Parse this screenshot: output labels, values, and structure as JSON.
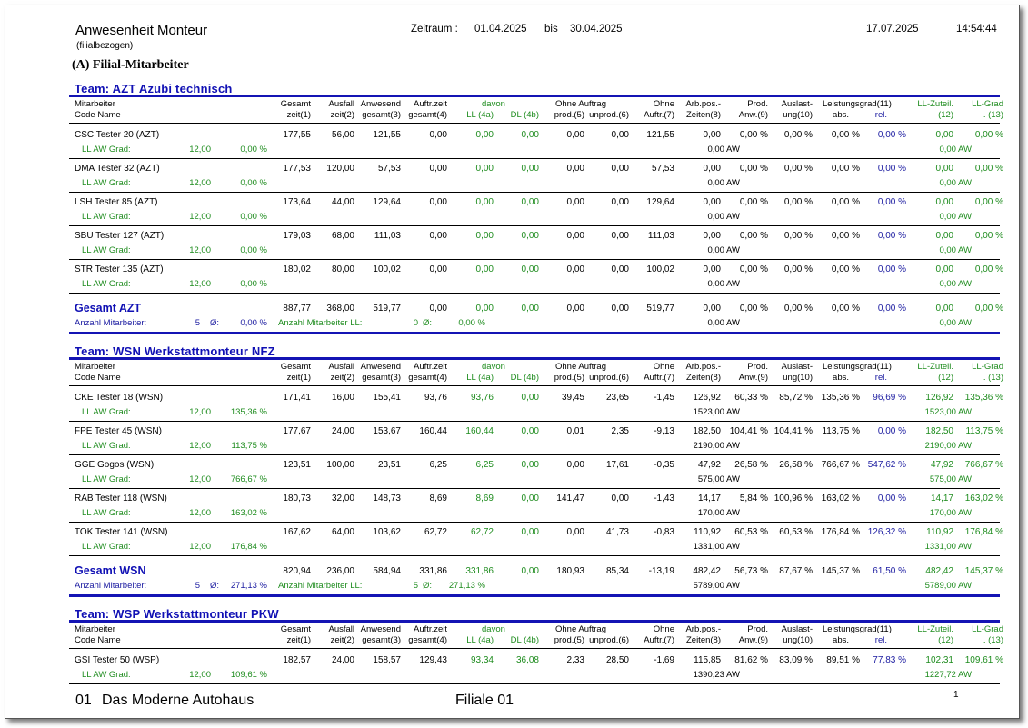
{
  "report": {
    "title": "Anwesenheit Monteur",
    "subtitle": "(filialbezogen)",
    "period_label": "Zeitraum :",
    "period_from": "01.04.2025",
    "period_sep": "bis",
    "period_to": "30.04.2025",
    "date": "17.07.2025",
    "time": "14:54:44",
    "section": "(A) Filial-Mitarbeiter"
  },
  "header_labels": {
    "mitarbeiter": "Mitarbeiter",
    "code_name": "Code  Name",
    "c1a": "Gesamt",
    "c1b": "zeit(1)",
    "c2a": "Ausfall",
    "c2b": "zeit(2)",
    "c3a": "Anwesend",
    "c3b": "gesamt(3)",
    "c4a": "Auftr.zeit",
    "c4b": "gesamt(4)",
    "davon": "davon",
    "c4ab": "LL (4a)",
    "c4bb": "DL (4b)",
    "ohne_auftrag": "Ohne Auftrag",
    "c5b": "prod.(5)",
    "c6b": "unprod.(6)",
    "c7a": "Ohne",
    "c7b": "Auftr.(7)",
    "c8a": "Arb.pos.-",
    "c8b": "Zeiten(8)",
    "c9a": "Prod.",
    "c9b": "Anw.(9)",
    "c10a": "Auslast-",
    "c10b": "ung(10)",
    "c11a": "Leistungsgrad(11)",
    "c11ab": "abs.",
    "c11bb": "rel.",
    "c12a": "LL-Zuteil.",
    "c12b": "(12)",
    "c13a": "LL-Grad",
    "c13b": ". (13)"
  },
  "labels": {
    "ll_aw_grad": "LL AW Grad:",
    "anzahl_ma": "Anzahl Mitarbeiter:",
    "anzahl_ll": "Anzahl Mitarbeiter LL:",
    "avg": "Ø:"
  },
  "teams": [
    {
      "title": "Team: AZT Azubi technisch",
      "rows": [
        {
          "name": "CSC Tester 20 (AZT)",
          "v": [
            "177,55",
            "56,00",
            "121,55",
            "0,00",
            "0,00",
            "0,00",
            "0,00",
            "0,00",
            "121,55",
            "0,00",
            "0,00 %",
            "0,00 %",
            "0,00 %",
            "0,00 %",
            "0,00",
            "0,00 %"
          ],
          "ll_aw": "12,00",
          "ll_pct": "0,00 %",
          "aw8": "0,00 AW",
          "aw12": "0,00 AW"
        },
        {
          "name": "DMA Tester 32 (AZT)",
          "v": [
            "177,53",
            "120,00",
            "57,53",
            "0,00",
            "0,00",
            "0,00",
            "0,00",
            "0,00",
            "57,53",
            "0,00",
            "0,00 %",
            "0,00 %",
            "0,00 %",
            "0,00 %",
            "0,00",
            "0,00 %"
          ],
          "ll_aw": "12,00",
          "ll_pct": "0,00 %",
          "aw8": "0,00 AW",
          "aw12": "0,00 AW"
        },
        {
          "name": "LSH Tester 85 (AZT)",
          "v": [
            "173,64",
            "44,00",
            "129,64",
            "0,00",
            "0,00",
            "0,00",
            "0,00",
            "0,00",
            "129,64",
            "0,00",
            "0,00 %",
            "0,00 %",
            "0,00 %",
            "0,00 %",
            "0,00",
            "0,00 %"
          ],
          "ll_aw": "12,00",
          "ll_pct": "0,00 %",
          "aw8": "0,00 AW",
          "aw12": "0,00 AW"
        },
        {
          "name": "SBU Tester 127 (AZT)",
          "v": [
            "179,03",
            "68,00",
            "111,03",
            "0,00",
            "0,00",
            "0,00",
            "0,00",
            "0,00",
            "111,03",
            "0,00",
            "0,00 %",
            "0,00 %",
            "0,00 %",
            "0,00 %",
            "0,00",
            "0,00 %"
          ],
          "ll_aw": "12,00",
          "ll_pct": "0,00 %",
          "aw8": "0,00 AW",
          "aw12": "0,00 AW"
        },
        {
          "name": "STR Tester 135 (AZT)",
          "v": [
            "180,02",
            "80,00",
            "100,02",
            "0,00",
            "0,00",
            "0,00",
            "0,00",
            "0,00",
            "100,02",
            "0,00",
            "0,00 %",
            "0,00 %",
            "0,00 %",
            "0,00 %",
            "0,00",
            "0,00 %"
          ],
          "ll_aw": "12,00",
          "ll_pct": "0,00 %",
          "aw8": "0,00 AW",
          "aw12": "0,00 AW"
        }
      ],
      "total": {
        "title": "Gesamt  AZT",
        "v": [
          "887,77",
          "368,00",
          "519,77",
          "0,00",
          "0,00",
          "0,00",
          "0,00",
          "0,00",
          "519,77",
          "0,00",
          "0,00 %",
          "0,00 %",
          "0,00 %",
          "0,00 %",
          "0,00",
          "0,00 %"
        ],
        "count": "5",
        "avg": "0,00 %",
        "ll_count": "0",
        "ll_avg": "0,00 %",
        "aw8": "0,00 AW",
        "aw12": "0,00 AW"
      }
    },
    {
      "title": "Team: WSN Werkstattmonteur NFZ",
      "rows": [
        {
          "name": "CKE Tester 18 (WSN)",
          "v": [
            "171,41",
            "16,00",
            "155,41",
            "93,76",
            "93,76",
            "0,00",
            "39,45",
            "23,65",
            "-1,45",
            "126,92",
            "60,33 %",
            "85,72 %",
            "135,36 %",
            "96,69 %",
            "126,92",
            "135,36 %"
          ],
          "ll_aw": "12,00",
          "ll_pct": "135,36 %",
          "aw8": "1523,00 AW",
          "aw12": "1523,00 AW"
        },
        {
          "name": "FPE Tester 45 (WSN)",
          "v": [
            "177,67",
            "24,00",
            "153,67",
            "160,44",
            "160,44",
            "0,00",
            "0,01",
            "2,35",
            "-9,13",
            "182,50",
            "104,41 %",
            "104,41 %",
            "113,75 %",
            "0,00 %",
            "182,50",
            "113,75 %"
          ],
          "ll_aw": "12,00",
          "ll_pct": "113,75 %",
          "aw8": "2190,00 AW",
          "aw12": "2190,00 AW"
        },
        {
          "name": "GGE Gogos (WSN)",
          "v": [
            "123,51",
            "100,00",
            "23,51",
            "6,25",
            "6,25",
            "0,00",
            "0,00",
            "17,61",
            "-0,35",
            "47,92",
            "26,58 %",
            "26,58 %",
            "766,67 %",
            "547,62 %",
            "47,92",
            "766,67 %"
          ],
          "ll_aw": "12,00",
          "ll_pct": "766,67 %",
          "aw8": "575,00 AW",
          "aw12": "575,00 AW"
        },
        {
          "name": "RAB Tester 118 (WSN)",
          "v": [
            "180,73",
            "32,00",
            "148,73",
            "8,69",
            "8,69",
            "0,00",
            "141,47",
            "0,00",
            "-1,43",
            "14,17",
            "5,84 %",
            "100,96 %",
            "163,02 %",
            "0,00 %",
            "14,17",
            "163,02 %"
          ],
          "ll_aw": "12,00",
          "ll_pct": "163,02 %",
          "aw8": "170,00 AW",
          "aw12": "170,00 AW"
        },
        {
          "name": "TOK Tester 141 (WSN)",
          "v": [
            "167,62",
            "64,00",
            "103,62",
            "62,72",
            "62,72",
            "0,00",
            "0,00",
            "41,73",
            "-0,83",
            "110,92",
            "60,53 %",
            "60,53 %",
            "176,84 %",
            "126,32 %",
            "110,92",
            "176,84 %"
          ],
          "ll_aw": "12,00",
          "ll_pct": "176,84 %",
          "aw8": "1331,00 AW",
          "aw12": "1331,00 AW"
        }
      ],
      "total": {
        "title": "Gesamt  WSN",
        "v": [
          "820,94",
          "236,00",
          "584,94",
          "331,86",
          "331,86",
          "0,00",
          "180,93",
          "85,34",
          "-13,19",
          "482,42",
          "56,73 %",
          "87,67 %",
          "145,37 %",
          "61,50 %",
          "482,42",
          "145,37 %"
        ],
        "count": "5",
        "avg": "271,13 %",
        "ll_count": "5",
        "ll_avg": "271,13 %",
        "aw8": "5789,00 AW",
        "aw12": "5789,00 AW"
      }
    },
    {
      "title": "Team: WSP Werkstattmonteur PKW",
      "rows": [
        {
          "name": "GSI Tester 50 (WSP)",
          "v": [
            "182,57",
            "24,00",
            "158,57",
            "129,43",
            "93,34",
            "36,08",
            "2,33",
            "28,50",
            "-1,69",
            "115,85",
            "81,62 %",
            "83,09 %",
            "89,51 %",
            "77,83 %",
            "102,31",
            "109,61 %"
          ],
          "ll_aw": "12,00",
          "ll_pct": "109,61 %",
          "aw8": "1390,23 AW",
          "aw12": "1227,72 AW"
        }
      ]
    }
  ],
  "footer": {
    "code": "01",
    "company": "Das Moderne Autohaus",
    "branch": "Filiale 01",
    "page": "1"
  }
}
